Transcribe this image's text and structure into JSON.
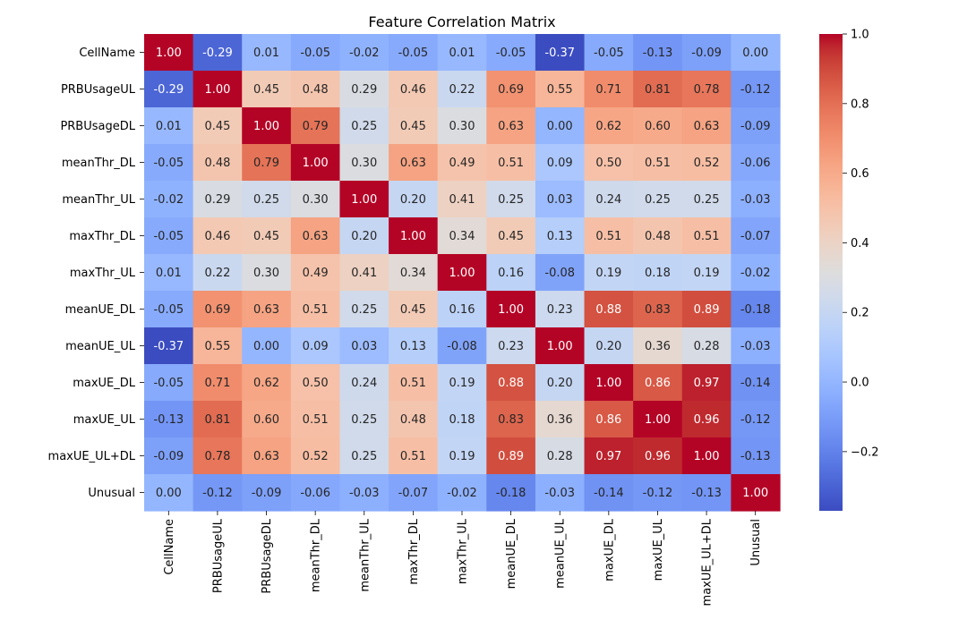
{
  "chart_data": {
    "type": "heatmap",
    "title": "Feature Correlation Matrix",
    "xlabel": "",
    "ylabel": "",
    "labels": [
      "CellName",
      "PRBUsageUL",
      "PRBUsageDL",
      "meanThr_DL",
      "meanThr_UL",
      "maxThr_DL",
      "maxThr_UL",
      "meanUE_DL",
      "meanUE_UL",
      "maxUE_DL",
      "maxUE_UL",
      "maxUE_UL+DL",
      "Unusual"
    ],
    "values": [
      [
        1.0,
        -0.29,
        0.01,
        -0.05,
        -0.02,
        -0.05,
        0.01,
        -0.05,
        -0.37,
        -0.05,
        -0.13,
        -0.09,
        -0.0
      ],
      [
        -0.29,
        1.0,
        0.45,
        0.48,
        0.29,
        0.46,
        0.22,
        0.69,
        0.55,
        0.71,
        0.81,
        0.78,
        -0.12
      ],
      [
        0.01,
        0.45,
        1.0,
        0.79,
        0.25,
        0.45,
        0.3,
        0.63,
        0.0,
        0.62,
        0.6,
        0.63,
        -0.09
      ],
      [
        -0.05,
        0.48,
        0.79,
        1.0,
        0.3,
        0.63,
        0.49,
        0.51,
        0.09,
        0.5,
        0.51,
        0.52,
        -0.06
      ],
      [
        -0.02,
        0.29,
        0.25,
        0.3,
        1.0,
        0.2,
        0.41,
        0.25,
        0.03,
        0.24,
        0.25,
        0.25,
        -0.03
      ],
      [
        -0.05,
        0.46,
        0.45,
        0.63,
        0.2,
        1.0,
        0.34,
        0.45,
        0.13,
        0.51,
        0.48,
        0.51,
        -0.07
      ],
      [
        0.01,
        0.22,
        0.3,
        0.49,
        0.41,
        0.34,
        1.0,
        0.16,
        -0.08,
        0.19,
        0.18,
        0.19,
        -0.02
      ],
      [
        -0.05,
        0.69,
        0.63,
        0.51,
        0.25,
        0.45,
        0.16,
        1.0,
        0.23,
        0.88,
        0.83,
        0.89,
        -0.18
      ],
      [
        -0.37,
        0.55,
        0.0,
        0.09,
        0.03,
        0.13,
        -0.08,
        0.23,
        1.0,
        0.2,
        0.36,
        0.28,
        -0.03
      ],
      [
        -0.05,
        0.71,
        0.62,
        0.5,
        0.24,
        0.51,
        0.19,
        0.88,
        0.2,
        1.0,
        0.86,
        0.97,
        -0.14
      ],
      [
        -0.13,
        0.81,
        0.6,
        0.51,
        0.25,
        0.48,
        0.18,
        0.83,
        0.36,
        0.86,
        1.0,
        0.96,
        -0.12
      ],
      [
        -0.09,
        0.78,
        0.63,
        0.52,
        0.25,
        0.51,
        0.19,
        0.89,
        0.28,
        0.97,
        0.96,
        1.0,
        -0.13
      ],
      [
        -0.0,
        -0.12,
        -0.09,
        -0.06,
        -0.03,
        -0.07,
        -0.02,
        -0.18,
        -0.03,
        -0.14,
        -0.12,
        -0.13,
        1.0
      ]
    ],
    "vmin": -0.37,
    "vmax": 1.0,
    "colormap": "coolwarm",
    "colorbar_ticks": [
      1.0,
      0.8,
      0.6,
      0.4,
      0.2,
      0.0,
      -0.2
    ],
    "colorbar_tick_labels": [
      "1.0",
      "0.8",
      "0.6",
      "0.4",
      "0.2",
      "0.0",
      "−0.2"
    ],
    "colors": {
      "low": "#3b4cc0",
      "mid": "#dddddd",
      "high": "#b40426",
      "axis": "#000000"
    }
  }
}
